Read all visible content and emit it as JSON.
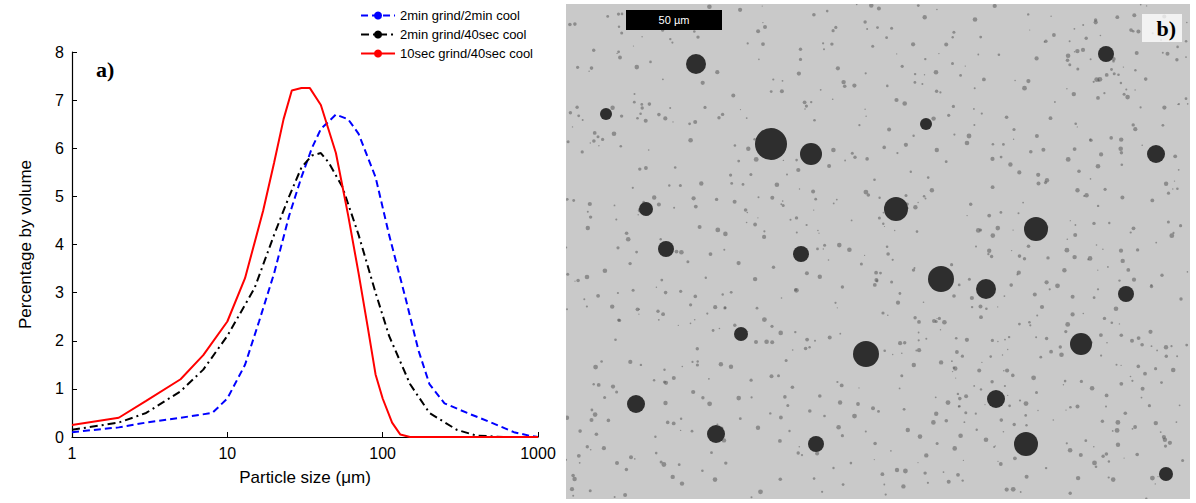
{
  "chart_data": {
    "type": "line",
    "x_label": "Particle size (μm)",
    "y_label": "Percentage by volume",
    "annotations": [
      "a)"
    ],
    "log": "x",
    "grid": false,
    "legend": "top-right",
    "xlim": [
      1,
      1000
    ],
    "xticks": [
      1,
      10,
      100,
      1000
    ],
    "ylim": [
      0,
      8
    ],
    "yticks": [
      0,
      1,
      2,
      3,
      4,
      5,
      6,
      7,
      8
    ],
    "series": [
      {
        "name": "2min grind/2min cool",
        "color": "#0000ff",
        "line_style": "dashed",
        "x": [
          1,
          2,
          3,
          5,
          8,
          10,
          13,
          16,
          20,
          25,
          30,
          35,
          40,
          50,
          60,
          70,
          90,
          110,
          140,
          170,
          200,
          250,
          350,
          500,
          700,
          900,
          1000
        ],
        "values": [
          0.1,
          0.2,
          0.3,
          0.4,
          0.5,
          0.8,
          1.5,
          2.4,
          3.4,
          4.6,
          5.4,
          6.0,
          6.4,
          6.7,
          6.6,
          6.3,
          5.4,
          4.2,
          2.9,
          1.8,
          1.1,
          0.7,
          0.5,
          0.3,
          0.1,
          0.02,
          0
        ]
      },
      {
        "name": "2min grind/40sec cool",
        "color": "#000000",
        "line_style": "dashdot",
        "x": [
          1,
          2,
          3,
          5,
          7,
          10,
          15,
          20,
          25,
          30,
          35,
          40,
          45,
          55,
          70,
          90,
          110,
          150,
          200,
          300,
          400,
          600,
          1000
        ],
        "values": [
          0.15,
          0.3,
          0.5,
          0.95,
          1.4,
          2.1,
          3.1,
          4.2,
          5.0,
          5.6,
          5.85,
          5.9,
          5.7,
          5.2,
          4.2,
          3.0,
          2.1,
          1.1,
          0.5,
          0.15,
          0.03,
          0,
          0
        ]
      },
      {
        "name": "10sec grind/40sec cool",
        "color": "#ff0000",
        "line_style": "solid",
        "x": [
          1,
          2,
          3,
          5,
          7,
          10,
          13,
          17,
          20,
          23,
          26,
          30,
          34,
          40,
          50,
          60,
          70,
          80,
          90,
          100,
          115,
          130,
          150,
          1000
        ],
        "values": [
          0.25,
          0.4,
          0.75,
          1.2,
          1.7,
          2.4,
          3.3,
          4.7,
          5.7,
          6.6,
          7.2,
          7.25,
          7.25,
          6.9,
          5.9,
          4.6,
          3.4,
          2.3,
          1.3,
          0.8,
          0.3,
          0.05,
          0,
          0
        ]
      }
    ]
  },
  "micrograph": {
    "label": "b)",
    "scale_bar": "50 µm"
  }
}
